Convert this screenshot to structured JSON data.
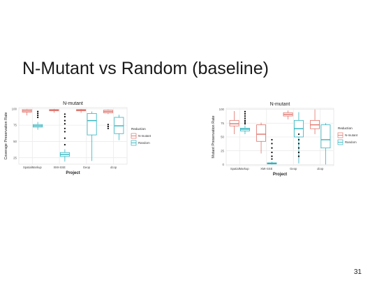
{
  "slide": {
    "title": "N-Mutant vs Random (baseline)",
    "page_number": "31"
  },
  "colors": {
    "n_mutant": "#e0736b",
    "random": "#2eb3bf",
    "panel_bg": "#ffffff",
    "grid": "#ebebeb",
    "outlier": "#000000"
  },
  "chart_data": [
    {
      "type": "box",
      "title": "N-mutant",
      "xlabel": "Project",
      "ylabel": "Coverage Preservation Rate",
      "categories": [
        "SpatialMarkup",
        "XMI-SSE",
        "Geop",
        "dcop"
      ],
      "yticks": [
        25,
        50,
        75,
        100
      ],
      "ylim": [
        15,
        102
      ],
      "legend": {
        "title": "Reduction",
        "position": "right",
        "entries": [
          "N-mutant",
          "Random"
        ]
      },
      "grid": true,
      "series": [
        {
          "name": "N-mutant",
          "boxes": [
            {
              "min": 90,
              "q1": 95,
              "median": 97,
              "q3": 99,
              "max": 100,
              "outliers": []
            },
            {
              "min": 94,
              "q1": 97,
              "median": 98,
              "q3": 99,
              "max": 100,
              "outliers": []
            },
            {
              "min": 94,
              "q1": 97,
              "median": 98,
              "q3": 99,
              "max": 100,
              "outliers": []
            },
            {
              "min": 92,
              "q1": 94,
              "median": 96,
              "q3": 98,
              "max": 99,
              "outliers": [
                70,
                73,
                76
              ]
            }
          ]
        },
        {
          "name": "Random",
          "boxes": [
            {
              "min": 68,
              "q1": 72,
              "median": 74,
              "q3": 76,
              "max": 80,
              "outliers": [
                87,
                90,
                93,
                96
              ]
            },
            {
              "min": 19,
              "q1": 27,
              "median": 30,
              "q3": 33,
              "max": 38,
              "outliers": [
                45,
                55,
                65,
                70,
                77,
                82,
                88,
                92
              ]
            },
            {
              "min": 20,
              "q1": 60,
              "median": 82,
              "q3": 93,
              "max": 96,
              "outliers": []
            },
            {
              "min": 52,
              "q1": 62,
              "median": 74,
              "q3": 87,
              "max": 91,
              "outliers": []
            }
          ]
        }
      ]
    },
    {
      "type": "box",
      "title": "N-mutant",
      "xlabel": "Project",
      "ylabel": "Mutant Preservation Rate",
      "categories": [
        "SpatialMarkup",
        "XMI-SSE",
        "Geop",
        "dcop"
      ],
      "yticks": [
        0,
        25,
        50,
        75,
        100
      ],
      "ylim": [
        -2,
        102
      ],
      "legend": {
        "title": "Reduction",
        "position": "right",
        "entries": [
          "N-mutant",
          "Random"
        ]
      },
      "grid": true,
      "series": [
        {
          "name": "N-mutant",
          "boxes": [
            {
              "min": 55,
              "q1": 70,
              "median": 74,
              "q3": 80,
              "max": 97,
              "outliers": []
            },
            {
              "min": 20,
              "q1": 42,
              "median": 55,
              "q3": 72,
              "max": 76,
              "outliers": []
            },
            {
              "min": 82,
              "q1": 88,
              "median": 91,
              "q3": 94,
              "max": 98,
              "outliers": []
            },
            {
              "min": 55,
              "q1": 65,
              "median": 72,
              "q3": 80,
              "max": 100,
              "outliers": []
            }
          ]
        },
        {
          "name": "Random",
          "boxes": [
            {
              "min": 55,
              "q1": 61,
              "median": 64,
              "q3": 66,
              "max": 71,
              "outliers": [
                74,
                77,
                80,
                84,
                88,
                92,
                96
              ]
            },
            {
              "min": 0,
              "q1": 1,
              "median": 2,
              "q3": 3,
              "max": 5,
              "outliers": [
                10,
                15,
                22,
                30,
                38,
                45
              ]
            },
            {
              "min": 2,
              "q1": 50,
              "median": 65,
              "q3": 80,
              "max": 95,
              "outliers": [
                15,
                22,
                30,
                38,
                45,
                55
              ]
            },
            {
              "min": 0,
              "q1": 30,
              "median": 45,
              "q3": 72,
              "max": 75,
              "outliers": []
            }
          ]
        }
      ]
    }
  ]
}
